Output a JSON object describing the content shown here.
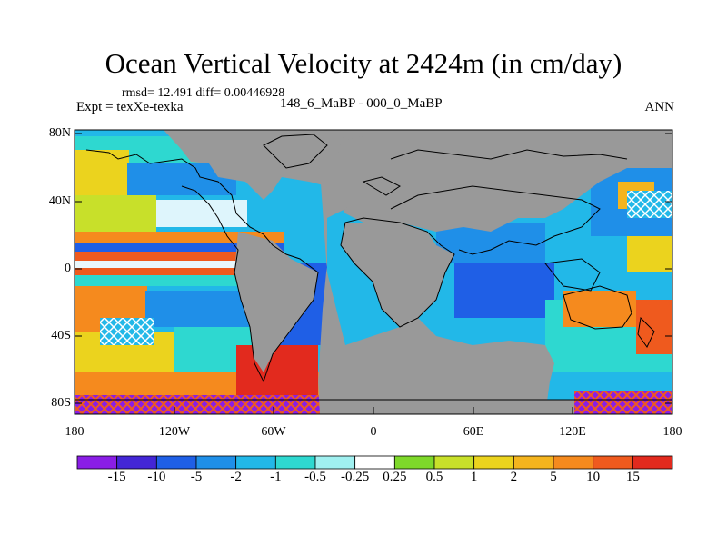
{
  "title": "Ocean Vertical Velocity at 2424m (in cm/day)",
  "stats_line": "rmsd= 12.491 diff= 0.00446928",
  "experiment": "Expt = texXe-texka",
  "comparison": "148_6_MaBP - 000_0_MaBP",
  "season": "ANN",
  "lat_ticks": [
    "80N",
    "40N",
    "0",
    "40S",
    "80S"
  ],
  "lon_ticks": [
    "180",
    "120W",
    "60W",
    "0",
    "60E",
    "120E",
    "180"
  ],
  "colorbar": {
    "labels": [
      "-15",
      "-10",
      "-5",
      "-2",
      "-1",
      "-0.5",
      "-0.25",
      "0.25",
      "0.5",
      "1",
      "2",
      "5",
      "10",
      "15"
    ],
    "colors": [
      "#8a1ee6",
      "#4326d6",
      "#1f5fe6",
      "#1f8fe8",
      "#22b8e8",
      "#2ed8d0",
      "#a0f0f0",
      "#ffffff",
      "#7ed82a",
      "#c8e02a",
      "#ebd31e",
      "#f4b41e",
      "#f58a1e",
      "#ef5a1e",
      "#e22a1e"
    ]
  },
  "map_colors": {
    "land": "#999999",
    "coast": "#000000"
  }
}
